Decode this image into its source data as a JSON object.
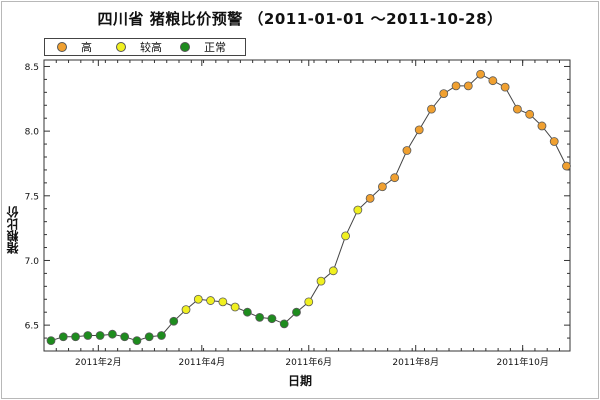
{
  "chart_data": {
    "type": "line",
    "title": "四川省 猪粮比价预警 （2011-01-01 ～2011-10-28）",
    "xlabel": "日期",
    "ylabel": "猪粮比价",
    "ylim": [
      6.3,
      8.55
    ],
    "yticks": [
      6.5,
      7.0,
      7.5,
      8.0,
      8.5
    ],
    "ytick_labels": [
      "6.5",
      "7.0",
      "7.5",
      "8.0",
      "8.5"
    ],
    "xlim": [
      "2011-01-01",
      "2011-10-28"
    ],
    "xticks": [
      "2011-02-01",
      "2011-04-01",
      "2011-06-01",
      "2011-08-01",
      "2011-10-01"
    ],
    "xtick_labels": [
      "2011年2月",
      "2011年4月",
      "2011年6月",
      "2011年8月",
      "2011年10月"
    ],
    "grid": false,
    "legend": [
      {
        "label": "高",
        "color": "#f0a030"
      },
      {
        "label": "较高",
        "color": "#f0f020"
      },
      {
        "label": "正常",
        "color": "#1e8c1e"
      }
    ],
    "points": [
      {
        "x": "2011-01-05",
        "y": 6.38,
        "level": "正常"
      },
      {
        "x": "2011-01-12",
        "y": 6.41,
        "level": "正常"
      },
      {
        "x": "2011-01-19",
        "y": 6.41,
        "level": "正常"
      },
      {
        "x": "2011-01-26",
        "y": 6.42,
        "level": "正常"
      },
      {
        "x": "2011-02-02",
        "y": 6.42,
        "level": "正常"
      },
      {
        "x": "2011-02-09",
        "y": 6.43,
        "level": "正常"
      },
      {
        "x": "2011-02-16",
        "y": 6.41,
        "level": "正常"
      },
      {
        "x": "2011-02-23",
        "y": 6.38,
        "level": "正常"
      },
      {
        "x": "2011-03-02",
        "y": 6.41,
        "level": "正常"
      },
      {
        "x": "2011-03-09",
        "y": 6.42,
        "level": "正常"
      },
      {
        "x": "2011-03-16",
        "y": 6.53,
        "level": "正常"
      },
      {
        "x": "2011-03-23",
        "y": 6.62,
        "level": "较高"
      },
      {
        "x": "2011-03-30",
        "y": 6.7,
        "level": "较高"
      },
      {
        "x": "2011-04-06",
        "y": 6.69,
        "level": "较高"
      },
      {
        "x": "2011-04-13",
        "y": 6.68,
        "level": "较高"
      },
      {
        "x": "2011-04-20",
        "y": 6.64,
        "level": "较高"
      },
      {
        "x": "2011-04-27",
        "y": 6.6,
        "level": "正常"
      },
      {
        "x": "2011-05-04",
        "y": 6.56,
        "level": "正常"
      },
      {
        "x": "2011-05-11",
        "y": 6.55,
        "level": "正常"
      },
      {
        "x": "2011-05-18",
        "y": 6.51,
        "level": "正常"
      },
      {
        "x": "2011-05-25",
        "y": 6.6,
        "level": "正常"
      },
      {
        "x": "2011-06-01",
        "y": 6.68,
        "level": "较高"
      },
      {
        "x": "2011-06-08",
        "y": 6.84,
        "level": "较高"
      },
      {
        "x": "2011-06-15",
        "y": 6.92,
        "level": "较高"
      },
      {
        "x": "2011-06-22",
        "y": 7.19,
        "level": "较高"
      },
      {
        "x": "2011-06-29",
        "y": 7.39,
        "level": "较高"
      },
      {
        "x": "2011-07-06",
        "y": 7.48,
        "level": "高"
      },
      {
        "x": "2011-07-13",
        "y": 7.57,
        "level": "高"
      },
      {
        "x": "2011-07-20",
        "y": 7.64,
        "level": "高"
      },
      {
        "x": "2011-07-27",
        "y": 7.85,
        "level": "高"
      },
      {
        "x": "2011-08-03",
        "y": 8.01,
        "level": "高"
      },
      {
        "x": "2011-08-10",
        "y": 8.17,
        "level": "高"
      },
      {
        "x": "2011-08-17",
        "y": 8.29,
        "level": "高"
      },
      {
        "x": "2011-08-24",
        "y": 8.35,
        "level": "高"
      },
      {
        "x": "2011-08-31",
        "y": 8.35,
        "level": "高"
      },
      {
        "x": "2011-09-07",
        "y": 8.44,
        "level": "高"
      },
      {
        "x": "2011-09-14",
        "y": 8.39,
        "level": "高"
      },
      {
        "x": "2011-09-21",
        "y": 8.34,
        "level": "高"
      },
      {
        "x": "2011-09-28",
        "y": 8.17,
        "level": "高"
      },
      {
        "x": "2011-10-05",
        "y": 8.13,
        "level": "高"
      },
      {
        "x": "2011-10-12",
        "y": 8.04,
        "level": "高"
      },
      {
        "x": "2011-10-19",
        "y": 7.92,
        "level": "高"
      },
      {
        "x": "2011-10-26",
        "y": 7.73,
        "level": "高"
      }
    ]
  }
}
